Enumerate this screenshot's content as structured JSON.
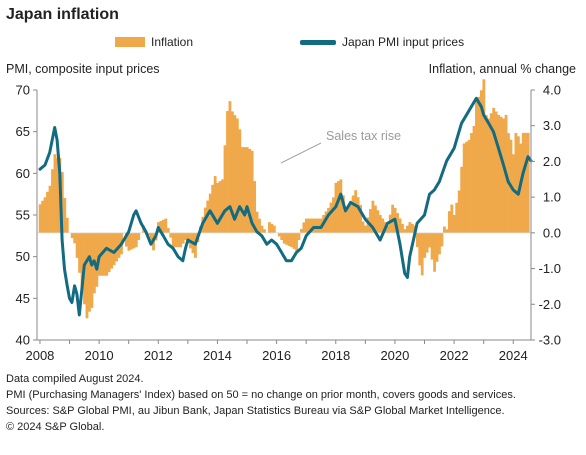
{
  "title": "Japan inflation",
  "legend": {
    "bar_label": "Inflation",
    "line_label": "Japan PMI input prices"
  },
  "left_axis_title": "PMI, composite input prices",
  "right_axis_title": "Inflation, annual % change",
  "annotation": "Sales tax rise",
  "notes": [
    "Data compiled August 2024.",
    "PMI (Purchasing Managers' Index) based on 50 = no change on prior month, covers goods and services.",
    "Sources: S&P Global PMI, au Jibun Bank, Japan Statistics Bureau via S&P Global Market Intelligence.",
    "© 2024 S&P Global."
  ],
  "colors": {
    "bar": "#f0a94a",
    "line": "#136b82",
    "axis": "#888888",
    "annotation": "#a6a6a6"
  },
  "chart_data": {
    "type": "bar+line",
    "x_ticks": [
      "2008",
      "2010",
      "2012",
      "2014",
      "2016",
      "2018",
      "2020",
      "2022",
      "2024"
    ],
    "x_range": [
      2007.9,
      2024.6
    ],
    "left_axis": {
      "ticks": [
        40,
        45,
        50,
        55,
        60,
        65,
        70
      ],
      "range": [
        40,
        70
      ]
    },
    "right_axis": {
      "ticks": [
        "-3.0",
        "-2.0",
        "-1.0",
        "0.0",
        "1.0",
        "2.0",
        "3.0",
        "4.0"
      ],
      "range": [
        -3.0,
        4.0
      ]
    },
    "bars": {
      "name": "Inflation",
      "axis": "right",
      "points": [
        [
          2008.0,
          0.8
        ],
        [
          2008.17,
          1.0
        ],
        [
          2008.33,
          1.3
        ],
        [
          2008.42,
          1.8
        ],
        [
          2008.5,
          2.2
        ],
        [
          2008.58,
          2.1
        ],
        [
          2008.67,
          2.1
        ],
        [
          2008.75,
          1.7
        ],
        [
          2008.83,
          1.0
        ],
        [
          2008.92,
          0.4
        ],
        [
          2009.0,
          0.0
        ],
        [
          2009.17,
          -0.3
        ],
        [
          2009.33,
          -1.1
        ],
        [
          2009.5,
          -2.0
        ],
        [
          2009.58,
          -2.4
        ],
        [
          2009.67,
          -2.2
        ],
        [
          2009.75,
          -2.1
        ],
        [
          2009.83,
          -1.7
        ],
        [
          2009.92,
          -1.5
        ],
        [
          2010.0,
          -1.2
        ],
        [
          2010.25,
          -1.2
        ],
        [
          2010.5,
          -0.9
        ],
        [
          2010.75,
          -0.6
        ],
        [
          2010.83,
          0.0
        ],
        [
          2010.92,
          -0.4
        ],
        [
          2011.0,
          -0.5
        ],
        [
          2011.25,
          -0.4
        ],
        [
          2011.5,
          0.2
        ],
        [
          2011.75,
          -0.2
        ],
        [
          2011.83,
          -0.5
        ],
        [
          2011.92,
          -0.2
        ],
        [
          2012.0,
          0.3
        ],
        [
          2012.25,
          0.4
        ],
        [
          2012.5,
          -0.4
        ],
        [
          2012.75,
          -0.4
        ],
        [
          2012.92,
          -0.2
        ],
        [
          2013.0,
          -0.3
        ],
        [
          2013.25,
          -0.7
        ],
        [
          2013.42,
          0.2
        ],
        [
          2013.58,
          0.7
        ],
        [
          2013.75,
          1.1
        ],
        [
          2013.92,
          1.6
        ],
        [
          2014.0,
          1.4
        ],
        [
          2014.17,
          1.5
        ],
        [
          2014.33,
          3.4
        ],
        [
          2014.42,
          3.7
        ],
        [
          2014.5,
          3.4
        ],
        [
          2014.58,
          3.3
        ],
        [
          2014.67,
          3.2
        ],
        [
          2014.75,
          2.9
        ],
        [
          2014.83,
          2.4
        ],
        [
          2014.92,
          2.4
        ],
        [
          2015.0,
          2.4
        ],
        [
          2015.17,
          2.3
        ],
        [
          2015.33,
          0.6
        ],
        [
          2015.5,
          0.2
        ],
        [
          2015.67,
          0.0
        ],
        [
          2015.75,
          0.3
        ],
        [
          2015.92,
          0.2
        ],
        [
          2016.0,
          0.0
        ],
        [
          2016.25,
          -0.3
        ],
        [
          2016.5,
          -0.4
        ],
        [
          2016.67,
          -0.5
        ],
        [
          2016.83,
          0.1
        ],
        [
          2016.92,
          0.3
        ],
        [
          2017.0,
          0.4
        ],
        [
          2017.25,
          0.4
        ],
        [
          2017.5,
          0.4
        ],
        [
          2017.75,
          0.7
        ],
        [
          2017.92,
          1.0
        ],
        [
          2018.0,
          1.4
        ],
        [
          2018.17,
          1.5
        ],
        [
          2018.33,
          0.6
        ],
        [
          2018.5,
          0.9
        ],
        [
          2018.67,
          1.2
        ],
        [
          2018.83,
          0.8
        ],
        [
          2018.92,
          0.3
        ],
        [
          2019.0,
          0.2
        ],
        [
          2019.25,
          0.9
        ],
        [
          2019.5,
          0.5
        ],
        [
          2019.67,
          0.3
        ],
        [
          2019.75,
          0.2
        ],
        [
          2019.83,
          0.5
        ],
        [
          2019.92,
          0.8
        ],
        [
          2020.0,
          0.7
        ],
        [
          2020.17,
          0.4
        ],
        [
          2020.33,
          0.1
        ],
        [
          2020.5,
          0.3
        ],
        [
          2020.67,
          0.2
        ],
        [
          2020.75,
          -0.4
        ],
        [
          2020.83,
          -0.9
        ],
        [
          2020.92,
          -1.2
        ],
        [
          2021.0,
          -0.7
        ],
        [
          2021.17,
          -0.4
        ],
        [
          2021.33,
          -1.1
        ],
        [
          2021.42,
          -0.8
        ],
        [
          2021.58,
          -0.4
        ],
        [
          2021.67,
          0.2
        ],
        [
          2021.75,
          0.1
        ],
        [
          2021.83,
          0.6
        ],
        [
          2021.92,
          0.8
        ],
        [
          2022.0,
          0.5
        ],
        [
          2022.17,
          1.2
        ],
        [
          2022.33,
          2.5
        ],
        [
          2022.5,
          2.6
        ],
        [
          2022.67,
          3.0
        ],
        [
          2022.75,
          3.7
        ],
        [
          2022.83,
          3.8
        ],
        [
          2022.92,
          4.0
        ],
        [
          2023.0,
          4.3
        ],
        [
          2023.08,
          3.3
        ],
        [
          2023.17,
          3.2
        ],
        [
          2023.33,
          3.5
        ],
        [
          2023.5,
          3.3
        ],
        [
          2023.67,
          3.2
        ],
        [
          2023.75,
          3.3
        ],
        [
          2023.83,
          2.8
        ],
        [
          2023.92,
          2.6
        ],
        [
          2024.0,
          2.2
        ],
        [
          2024.08,
          2.8
        ],
        [
          2024.17,
          2.7
        ],
        [
          2024.25,
          2.5
        ],
        [
          2024.33,
          2.8
        ],
        [
          2024.42,
          2.8
        ],
        [
          2024.5,
          2.8
        ]
      ]
    },
    "line": {
      "name": "Japan PMI input prices",
      "axis": "left",
      "points": [
        [
          2008.0,
          60.5
        ],
        [
          2008.17,
          61.0
        ],
        [
          2008.33,
          62.5
        ],
        [
          2008.5,
          65.5
        ],
        [
          2008.58,
          64.0
        ],
        [
          2008.67,
          60.0
        ],
        [
          2008.75,
          52.0
        ],
        [
          2008.83,
          48.5
        ],
        [
          2008.92,
          46.5
        ],
        [
          2009.0,
          45.0
        ],
        [
          2009.08,
          44.5
        ],
        [
          2009.17,
          46.5
        ],
        [
          2009.25,
          45.5
        ],
        [
          2009.33,
          43.0
        ],
        [
          2009.5,
          49.0
        ],
        [
          2009.67,
          50.0
        ],
        [
          2009.75,
          49.0
        ],
        [
          2009.83,
          49.5
        ],
        [
          2009.92,
          48.5
        ],
        [
          2010.0,
          50.0
        ],
        [
          2010.25,
          51.0
        ],
        [
          2010.5,
          50.5
        ],
        [
          2010.75,
          51.5
        ],
        [
          2011.0,
          53.0
        ],
        [
          2011.17,
          55.0
        ],
        [
          2011.25,
          55.5
        ],
        [
          2011.42,
          54.0
        ],
        [
          2011.58,
          53.0
        ],
        [
          2011.75,
          51.5
        ],
        [
          2011.92,
          52.5
        ],
        [
          2012.0,
          53.5
        ],
        [
          2012.17,
          52.5
        ],
        [
          2012.33,
          51.5
        ],
        [
          2012.5,
          51.0
        ],
        [
          2012.67,
          50.0
        ],
        [
          2012.83,
          49.5
        ],
        [
          2012.92,
          51.0
        ],
        [
          2013.0,
          52.0
        ],
        [
          2013.25,
          51.5
        ],
        [
          2013.5,
          54.0
        ],
        [
          2013.75,
          55.5
        ],
        [
          2014.0,
          54.0
        ],
        [
          2014.25,
          55.5
        ],
        [
          2014.42,
          56.0
        ],
        [
          2014.58,
          54.5
        ],
        [
          2014.75,
          56.0
        ],
        [
          2014.92,
          55.0
        ],
        [
          2015.0,
          56.0
        ],
        [
          2015.17,
          54.0
        ],
        [
          2015.33,
          53.0
        ],
        [
          2015.5,
          52.5
        ],
        [
          2015.67,
          51.5
        ],
        [
          2015.83,
          52.0
        ],
        [
          2016.0,
          51.5
        ],
        [
          2016.17,
          50.5
        ],
        [
          2016.33,
          49.5
        ],
        [
          2016.5,
          49.5
        ],
        [
          2016.67,
          50.5
        ],
        [
          2016.83,
          51.0
        ],
        [
          2017.0,
          52.5
        ],
        [
          2017.25,
          53.5
        ],
        [
          2017.5,
          53.5
        ],
        [
          2017.75,
          55.0
        ],
        [
          2018.0,
          56.0
        ],
        [
          2018.17,
          57.5
        ],
        [
          2018.33,
          55.5
        ],
        [
          2018.5,
          56.5
        ],
        [
          2018.75,
          56.0
        ],
        [
          2019.0,
          54.5
        ],
        [
          2019.25,
          53.5
        ],
        [
          2019.5,
          52.0
        ],
        [
          2019.75,
          54.0
        ],
        [
          2020.0,
          54.5
        ],
        [
          2020.17,
          51.5
        ],
        [
          2020.33,
          48.0
        ],
        [
          2020.42,
          47.5
        ],
        [
          2020.5,
          50.0
        ],
        [
          2020.75,
          54.0
        ],
        [
          2021.0,
          55.0
        ],
        [
          2021.17,
          57.5
        ],
        [
          2021.33,
          58.0
        ],
        [
          2021.5,
          59.0
        ],
        [
          2021.75,
          61.5
        ],
        [
          2022.0,
          63.0
        ],
        [
          2022.25,
          66.0
        ],
        [
          2022.5,
          67.5
        ],
        [
          2022.75,
          69.0
        ],
        [
          2022.92,
          68.0
        ],
        [
          2023.0,
          67.0
        ],
        [
          2023.17,
          66.0
        ],
        [
          2023.33,
          65.0
        ],
        [
          2023.5,
          63.0
        ],
        [
          2023.67,
          61.0
        ],
        [
          2023.83,
          59.0
        ],
        [
          2024.0,
          58.0
        ],
        [
          2024.17,
          57.5
        ],
        [
          2024.33,
          60.0
        ],
        [
          2024.5,
          62.0
        ],
        [
          2024.6,
          61.5
        ]
      ]
    }
  }
}
